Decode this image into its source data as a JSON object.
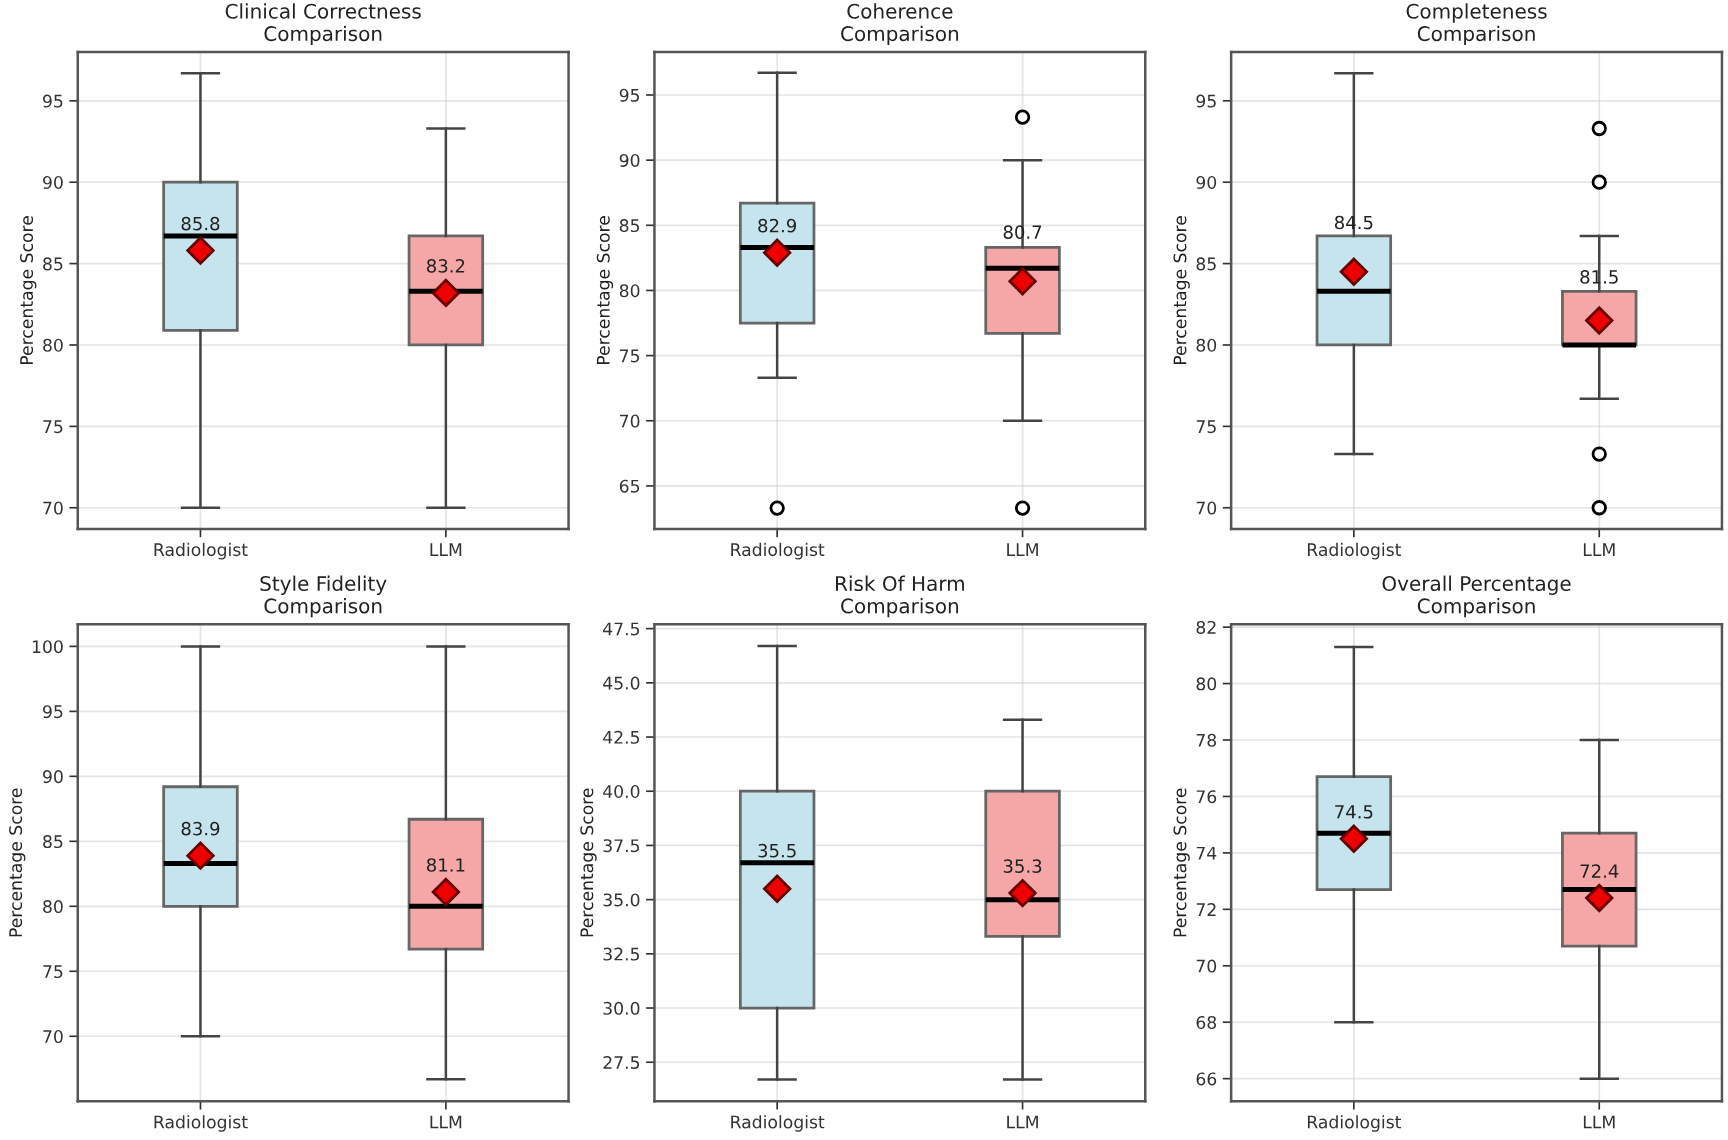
{
  "chart_data": [
    {
      "type": "box",
      "title": "Clinical Correctness\nComparison",
      "ylabel": "Percentage Score",
      "categories": [
        "Radiologist",
        "LLM"
      ],
      "colors": [
        "#c6e4ee",
        "#f5a6a6"
      ],
      "boxes": [
        {
          "low": 70,
          "q1": 80.9,
          "median": 86.7,
          "q3": 90,
          "high": 96.7,
          "mean": 85.8
        },
        {
          "low": 70,
          "q1": 80,
          "median": 83.3,
          "q3": 86.7,
          "high": 93.3,
          "mean": 83.2
        }
      ],
      "value_labels": [
        "85.8",
        "83.2"
      ],
      "ylim": [
        68.7,
        98.0
      ],
      "yticks": [
        70,
        75,
        80,
        85,
        90,
        95
      ],
      "grid": true,
      "marker": "diamond"
    },
    {
      "type": "box",
      "title": "Coherence\nComparison",
      "ylabel": "Percentage Score",
      "categories": [
        "Radiologist",
        "LLM"
      ],
      "colors": [
        "#c6e4ee",
        "#f5a6a6"
      ],
      "boxes": [
        {
          "low": 73.3,
          "q1": 77.5,
          "median": 83.3,
          "q3": 86.7,
          "high": 96.7,
          "mean": 82.9,
          "outliers": [
            63.3
          ]
        },
        {
          "low": 70,
          "q1": 76.7,
          "median": 81.7,
          "q3": 83.3,
          "high": 90,
          "mean": 80.7,
          "outliers": [
            93.3,
            63.3
          ]
        }
      ],
      "value_labels": [
        "82.9",
        "80.7"
      ],
      "ylim": [
        61.7,
        98.3
      ],
      "yticks": [
        65,
        70,
        75,
        80,
        85,
        90,
        95
      ],
      "grid": true,
      "marker": "diamond"
    },
    {
      "type": "box",
      "title": "Completeness\nComparison",
      "ylabel": "Percentage Score",
      "categories": [
        "Radiologist",
        "LLM"
      ],
      "colors": [
        "#c6e4ee",
        "#f5a6a6"
      ],
      "boxes": [
        {
          "low": 73.3,
          "q1": 80,
          "median": 83.3,
          "q3": 86.7,
          "high": 96.7,
          "mean": 84.5
        },
        {
          "low": 76.7,
          "q1": 80,
          "median": 80,
          "q3": 83.3,
          "high": 86.7,
          "mean": 81.5,
          "outliers": [
            93.3,
            90,
            73.3,
            70
          ]
        }
      ],
      "value_labels": [
        "84.5",
        "81.5"
      ],
      "ylim": [
        68.7,
        98.0
      ],
      "yticks": [
        70,
        75,
        80,
        85,
        90,
        95
      ],
      "grid": true,
      "marker": "diamond"
    },
    {
      "type": "box",
      "title": "Style Fidelity\nComparison",
      "ylabel": "Percentage Score",
      "categories": [
        "Radiologist",
        "LLM"
      ],
      "colors": [
        "#c6e4ee",
        "#f5a6a6"
      ],
      "boxes": [
        {
          "low": 70,
          "q1": 80,
          "median": 83.3,
          "q3": 89.2,
          "high": 100,
          "mean": 83.9
        },
        {
          "low": 66.7,
          "q1": 76.7,
          "median": 80,
          "q3": 86.7,
          "high": 100,
          "mean": 81.1
        }
      ],
      "value_labels": [
        "83.9",
        "81.1"
      ],
      "ylim": [
        65.0,
        101.7
      ],
      "yticks": [
        70,
        75,
        80,
        85,
        90,
        95,
        100
      ],
      "grid": true,
      "marker": "diamond"
    },
    {
      "type": "box",
      "title": "Risk Of Harm\nComparison",
      "ylabel": "Percentage Score",
      "categories": [
        "Radiologist",
        "LLM"
      ],
      "colors": [
        "#c6e4ee",
        "#f5a6a6"
      ],
      "boxes": [
        {
          "low": 26.7,
          "q1": 30,
          "median": 36.7,
          "q3": 40,
          "high": 46.7,
          "mean": 35.5
        },
        {
          "low": 26.7,
          "q1": 33.3,
          "median": 35,
          "q3": 40,
          "high": 43.3,
          "mean": 35.3
        }
      ],
      "value_labels": [
        "35.5",
        "35.3"
      ],
      "ylim": [
        25.7,
        47.7
      ],
      "yticks": [
        {
          "value": 27.5,
          "label": "27.5"
        },
        {
          "value": 30,
          "label": "30.0"
        },
        {
          "value": 32.5,
          "label": "32.5"
        },
        {
          "value": 35,
          "label": "35.0"
        },
        {
          "value": 37.5,
          "label": "37.5"
        },
        {
          "value": 40,
          "label": "40.0"
        },
        {
          "value": 42.5,
          "label": "42.5"
        },
        {
          "value": 45,
          "label": "45.0"
        },
        {
          "value": 47.5,
          "label": "47.5"
        }
      ],
      "grid": true,
      "marker": "diamond"
    },
    {
      "type": "box",
      "title": "Overall Percentage\nComparison",
      "ylabel": "Percentage Score",
      "categories": [
        "Radiologist",
        "LLM"
      ],
      "colors": [
        "#c6e4ee",
        "#f5a6a6"
      ],
      "boxes": [
        {
          "low": 68,
          "q1": 72.7,
          "median": 74.7,
          "q3": 76.7,
          "high": 81.3,
          "mean": 74.5
        },
        {
          "low": 66,
          "q1": 70.7,
          "median": 72.7,
          "q3": 74.7,
          "high": 78,
          "mean": 72.4
        }
      ],
      "value_labels": [
        "74.5",
        "72.4"
      ],
      "ylim": [
        65.2,
        82.1
      ],
      "yticks": [
        66,
        68,
        70,
        72,
        74,
        76,
        78,
        80,
        82
      ],
      "grid": true,
      "marker": "diamond"
    }
  ]
}
